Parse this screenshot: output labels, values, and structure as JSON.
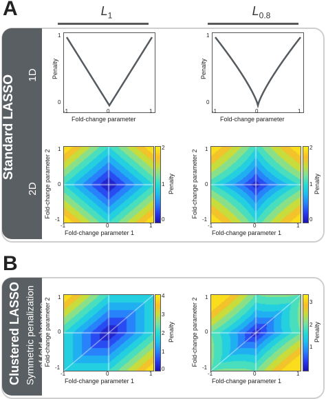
{
  "panels": {
    "a_letter": "A",
    "b_letter": "B"
  },
  "columns": {
    "left_base": "L",
    "left_sub": "1",
    "right_base": "L",
    "right_sub": "0.8"
  },
  "section_a": {
    "side_label": "Standard LASSO",
    "row_1d": "1D",
    "row_2d": "2D"
  },
  "section_b": {
    "side_label": "Clustered LASSO",
    "side_sub_1": "Symmetric penalization",
    "side_sub_2": "of fold-changes"
  },
  "labels": {
    "penalty": "Penalty",
    "fold_change_parameter": "Fold-change parameter",
    "fold_change_parameter_1": "Fold-change parameter 1",
    "fold_change_parameter_2": "Fold-change parameter 2"
  },
  "ticks": {
    "x": [
      "-1",
      "0",
      "1"
    ],
    "y1d": [
      "0",
      "1"
    ],
    "cb_a": [
      "0",
      "1",
      "2"
    ],
    "cb_b_left": [
      "0",
      "1",
      "2",
      "3",
      "4"
    ],
    "cb_b_right": [
      "1",
      "2",
      "3"
    ]
  },
  "chart_data": [
    {
      "type": "line",
      "xlabel": "Fold-change parameter",
      "ylabel": "Penalty",
      "x": [
        -1,
        -0.5,
        0,
        0.5,
        1
      ],
      "y": [
        1,
        0.5,
        0,
        0.5,
        1
      ],
      "xlim": [
        -1,
        1
      ],
      "ylim": [
        0,
        1
      ]
    },
    {
      "type": "line",
      "xlabel": "Fold-change parameter",
      "ylabel": "Penalty",
      "x": [
        -1,
        -0.5,
        0,
        0.5,
        1
      ],
      "y": [
        1,
        0.57,
        0,
        0.57,
        1
      ],
      "xlim": [
        -1,
        1
      ],
      "ylim": [
        0,
        1
      ]
    },
    {
      "type": "heatmap",
      "xlabel": "Fold-change parameter 1",
      "ylabel": "Fold-change parameter 2",
      "colorbar_label": "Penalty",
      "function": "|x|+|y|",
      "xlim": [
        -1,
        1
      ],
      "ylim": [
        -1,
        1
      ],
      "clim": [
        0,
        2
      ]
    },
    {
      "type": "heatmap",
      "xlabel": "Fold-change parameter 1",
      "ylabel": "Fold-change parameter 2",
      "colorbar_label": "Penalty",
      "function": "|x|^0.8+|y|^0.8",
      "xlim": [
        -1,
        1
      ],
      "ylim": [
        -1,
        1
      ],
      "clim": [
        0,
        2
      ]
    },
    {
      "type": "heatmap",
      "xlabel": "Fold-change parameter 1",
      "ylabel": "Fold-change parameter 2",
      "colorbar_label": "Penalty",
      "function": "|x|+|y|+|x-y|",
      "xlim": [
        -1,
        1
      ],
      "ylim": [
        -1,
        1
      ],
      "clim": [
        0,
        4
      ]
    },
    {
      "type": "heatmap",
      "xlabel": "Fold-change parameter 1",
      "ylabel": "Fold-change parameter 2",
      "colorbar_label": "Penalty",
      "function": "|x|^0.8+|y|^0.8+|x-y|^0.8",
      "xlim": [
        -1,
        1
      ],
      "ylim": [
        -1,
        1
      ],
      "clim": [
        0,
        3.4
      ]
    }
  ]
}
